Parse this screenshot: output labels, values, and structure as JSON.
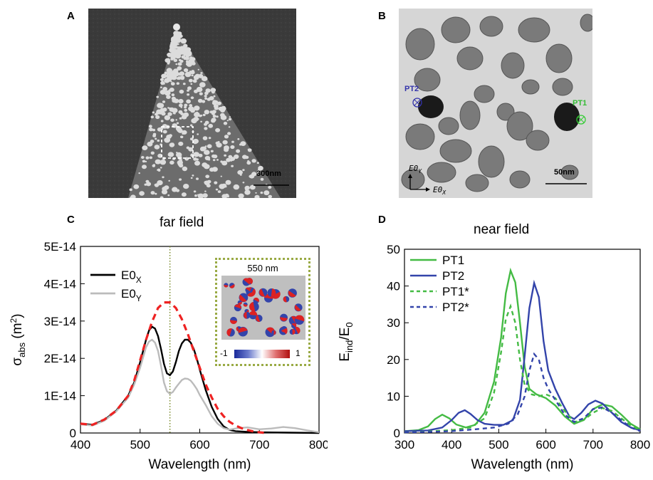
{
  "panels": {
    "a": {
      "letter": "A",
      "scale_label": "300nm"
    },
    "b": {
      "letter": "B",
      "scale_label": "50nm",
      "point_labels": [
        "PT2",
        "PT1"
      ],
      "axis_labels": {
        "x": "E0_X",
        "y": "E0_Y"
      },
      "colors": {
        "pt1": "#33cc33",
        "pt2": "#3333aa"
      }
    },
    "c": {
      "letter": "C",
      "title": "far field",
      "inset": {
        "label": "550 nm",
        "colorbar_min": "-1",
        "colorbar_max": "1",
        "border_color": "#99aa44"
      }
    },
    "d": {
      "letter": "D",
      "title": "near field"
    }
  },
  "chart_data": [
    {
      "type": "line",
      "title": "far field",
      "xlabel": "Wavelength (nm)",
      "ylabel": "σabs (m²)",
      "xlim": [
        400,
        800
      ],
      "ylim": [
        0,
        5e-14
      ],
      "xticks": [
        400,
        500,
        600,
        700,
        800
      ],
      "yticks": [
        0,
        1e-14,
        2e-14,
        3e-14,
        4e-14,
        5e-14
      ],
      "ytick_labels": [
        "0",
        "1E-14",
        "2E-14",
        "3E-14",
        "4E-14",
        "5E-14"
      ],
      "legend_position": "top-left",
      "vline": {
        "x": 550,
        "color": "#7a8a2a",
        "style": "dotted"
      },
      "series": [
        {
          "name": "E0X",
          "color": "#000000",
          "style": "solid",
          "x": [
            400,
            420,
            440,
            460,
            480,
            490,
            500,
            510,
            515,
            520,
            525,
            530,
            535,
            540,
            545,
            550,
            555,
            560,
            565,
            570,
            575,
            580,
            585,
            590,
            595,
            600,
            610,
            620,
            630,
            640,
            650,
            660,
            680,
            700,
            750,
            800
          ],
          "y": [
            2.5e-15,
            2.2e-15,
            3.5e-15,
            6e-15,
            1e-14,
            1.35e-14,
            1.9e-14,
            2.5e-14,
            2.75e-14,
            2.85e-14,
            2.8e-14,
            2.6e-14,
            2.25e-14,
            1.85e-14,
            1.6e-14,
            1.55e-14,
            1.65e-14,
            1.9e-14,
            2.2e-14,
            2.4e-14,
            2.5e-14,
            2.5e-14,
            2.42e-14,
            2.25e-14,
            2e-14,
            1.7e-14,
            1.15e-14,
            7e-15,
            3.8e-15,
            1.8e-15,
            8e-16,
            5e-16,
            3e-16,
            2e-16,
            1e-16,
            0
          ]
        },
        {
          "name": "E0Y",
          "color": "#bbbbbb",
          "style": "solid",
          "x": [
            400,
            420,
            440,
            460,
            480,
            490,
            500,
            510,
            515,
            520,
            525,
            530,
            535,
            540,
            545,
            550,
            555,
            560,
            565,
            570,
            575,
            580,
            585,
            590,
            595,
            600,
            610,
            620,
            630,
            640,
            650,
            660,
            680,
            700,
            720,
            740,
            760,
            780,
            800
          ],
          "y": [
            2.3e-15,
            2e-15,
            3.3e-15,
            5.8e-15,
            9.5e-15,
            1.3e-14,
            1.75e-14,
            2.3e-14,
            2.45e-14,
            2.5e-14,
            2.42e-14,
            2.2e-14,
            1.8e-14,
            1.35e-14,
            1.12e-14,
            1.05e-14,
            1.1e-14,
            1.22e-14,
            1.32e-14,
            1.42e-14,
            1.46e-14,
            1.45e-14,
            1.4e-14,
            1.3e-14,
            1.18e-14,
            1.02e-14,
            7.5e-15,
            4.5e-15,
            2.5e-15,
            1.3e-15,
            9e-16,
            1.2e-15,
            1.5e-15,
            1e-15,
            1.2e-15,
            1.6e-15,
            1.3e-15,
            7e-16,
            2e-16
          ]
        },
        {
          "name": "",
          "color": "#ee2222",
          "style": "dashed",
          "x": [
            400,
            420,
            440,
            460,
            480,
            490,
            500,
            510,
            520,
            530,
            540,
            550,
            560,
            570,
            580,
            590,
            600,
            610,
            620,
            630,
            640,
            650,
            660,
            670,
            680,
            690,
            700,
            710
          ],
          "y": [
            2.5e-15,
            2.2e-15,
            3.6e-15,
            6e-15,
            1e-14,
            1.4e-14,
            1.95e-14,
            2.5e-14,
            2.98e-14,
            3.35e-14,
            3.5e-14,
            3.5e-14,
            3.35e-14,
            3.05e-14,
            2.65e-14,
            2.2e-14,
            1.75e-14,
            1.3e-14,
            9.5e-15,
            6.5e-15,
            4.5e-15,
            3e-15,
            2e-15,
            1.3e-15,
            8e-16,
            4e-16,
            2e-16,
            0
          ]
        }
      ]
    },
    {
      "type": "line",
      "title": "near field",
      "xlabel": "Wavelength (nm)",
      "ylabel": "Eind/E0",
      "xlim": [
        300,
        800
      ],
      "ylim": [
        0,
        50
      ],
      "xticks": [
        300,
        400,
        500,
        600,
        700,
        800
      ],
      "yticks": [
        0,
        10,
        20,
        30,
        40,
        50
      ],
      "legend_position": "top-left",
      "series": [
        {
          "name": "PT1",
          "color": "#44bb44",
          "style": "solid",
          "x": [
            300,
            330,
            350,
            365,
            380,
            395,
            410,
            430,
            450,
            470,
            490,
            505,
            515,
            525,
            535,
            545,
            555,
            565,
            580,
            600,
            620,
            640,
            660,
            680,
            700,
            720,
            740,
            760,
            780,
            800
          ],
          "y": [
            0.5,
            0.8,
            1.8,
            3.8,
            5.0,
            4.0,
            2.3,
            1.5,
            2.2,
            5.5,
            14,
            26,
            38,
            44.2,
            41,
            30,
            18,
            12,
            10.5,
            9.5,
            7.5,
            4.5,
            2.5,
            3.5,
            6.5,
            7.8,
            7.2,
            5,
            2.5,
            1
          ]
        },
        {
          "name": "PT2",
          "color": "#3344aa",
          "style": "solid",
          "x": [
            300,
            350,
            380,
            400,
            415,
            428,
            440,
            455,
            470,
            490,
            510,
            530,
            545,
            555,
            565,
            575,
            585,
            595,
            605,
            620,
            635,
            650,
            660,
            675,
            690,
            705,
            720,
            740,
            760,
            780,
            800
          ],
          "y": [
            0.5,
            0.7,
            1.5,
            3.5,
            5.5,
            6.2,
            5.2,
            3.5,
            2.5,
            2.2,
            2.2,
            3.5,
            9,
            21,
            34,
            40.8,
            37,
            25,
            17,
            12,
            8,
            4.5,
            3.8,
            5.5,
            7.8,
            8.8,
            8,
            5.5,
            3,
            1.5,
            0.7
          ]
        },
        {
          "name": "PT1*",
          "color": "#44bb44",
          "style": "dashed",
          "x": [
            300,
            350,
            400,
            440,
            470,
            490,
            505,
            515,
            525,
            535,
            545,
            555,
            570,
            585,
            600,
            620,
            640,
            660,
            680,
            700,
            720,
            740,
            760,
            780,
            800
          ],
          "y": [
            0.2,
            0.4,
            0.8,
            1.5,
            4,
            11,
            22,
            31,
            34.5,
            30,
            20,
            13,
            10.5,
            10,
            10.5,
            9.5,
            6,
            3,
            3.5,
            5.5,
            6.8,
            6,
            4,
            2,
            0.8
          ]
        },
        {
          "name": "PT2*",
          "color": "#3344aa",
          "style": "dashed",
          "x": [
            300,
            350,
            400,
            450,
            490,
            520,
            540,
            555,
            565,
            575,
            585,
            595,
            605,
            620,
            640,
            660,
            680,
            700,
            720,
            740,
            760,
            780,
            800
          ],
          "y": [
            0.2,
            0.3,
            0.5,
            1,
            1.5,
            2.5,
            5,
            10,
            17,
            21.5,
            20,
            15,
            12,
            9,
            5,
            3,
            4,
            6.5,
            7,
            5.5,
            3.5,
            1.5,
            0.5
          ]
        }
      ]
    }
  ]
}
